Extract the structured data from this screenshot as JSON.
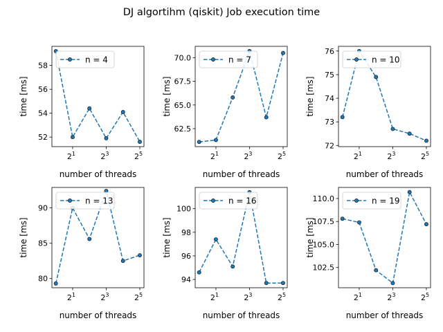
{
  "figure": {
    "title": "DJ algortihm (qiskit) Job execution time"
  },
  "series_color": "#1f77b4",
  "chart_data": [
    {
      "type": "line",
      "xscale": "log2",
      "xlabel": "number of threads",
      "ylabel": "time [ms]",
      "legend": "n = 4",
      "legend_loc": "upper-left",
      "x": [
        1,
        2,
        4,
        8,
        16,
        32
      ],
      "y": [
        59.2,
        52.0,
        54.4,
        51.9,
        54.1,
        51.6
      ],
      "ylim": [
        51.2,
        59.6
      ],
      "xticks": [
        {
          "v": 2,
          "label": "2",
          "exp": "1"
        },
        {
          "v": 8,
          "label": "2",
          "exp": "3"
        },
        {
          "v": 32,
          "label": "2",
          "exp": "5"
        }
      ],
      "yticks": [
        52,
        54,
        56,
        58
      ],
      "ytick_labels": [
        "52",
        "54",
        "56",
        "58"
      ]
    },
    {
      "type": "line",
      "xscale": "log2",
      "xlabel": "number of threads",
      "ylabel": "time [ms]",
      "legend": "n = 7",
      "legend_loc": "upper-left",
      "x": [
        1,
        2,
        4,
        8,
        16,
        32
      ],
      "y": [
        61.1,
        61.3,
        65.8,
        70.7,
        63.7,
        70.5
      ],
      "ylim": [
        60.6,
        71.2
      ],
      "xticks": [
        {
          "v": 2,
          "label": "2",
          "exp": "1"
        },
        {
          "v": 8,
          "label": "2",
          "exp": "3"
        },
        {
          "v": 32,
          "label": "2",
          "exp": "5"
        }
      ],
      "yticks": [
        62.5,
        65.0,
        67.5,
        70.0
      ],
      "ytick_labels": [
        "62.5",
        "65.0",
        "67.5",
        "70.0"
      ]
    },
    {
      "type": "line",
      "xscale": "log2",
      "xlabel": "number of threads",
      "ylabel": "time [ms]",
      "legend": "n = 10",
      "legend_loc": "upper-left",
      "x": [
        1,
        2,
        4,
        8,
        16,
        32
      ],
      "y": [
        73.2,
        76.0,
        74.9,
        72.7,
        72.5,
        72.2
      ],
      "ylim": [
        71.95,
        76.2
      ],
      "xticks": [
        {
          "v": 2,
          "label": "2",
          "exp": "1"
        },
        {
          "v": 8,
          "label": "2",
          "exp": "3"
        },
        {
          "v": 32,
          "label": "2",
          "exp": "5"
        }
      ],
      "yticks": [
        72,
        73,
        74,
        75,
        76
      ],
      "ytick_labels": [
        "72",
        "73",
        "74",
        "75",
        "76"
      ]
    },
    {
      "type": "line",
      "xscale": "log2",
      "xlabel": "number of threads",
      "ylabel": "time [ms]",
      "legend": "n = 13",
      "legend_loc": "upper-left",
      "x": [
        1,
        2,
        4,
        8,
        16,
        32
      ],
      "y": [
        79.3,
        90.0,
        85.6,
        92.4,
        82.5,
        83.3
      ],
      "ylim": [
        78.7,
        92.9
      ],
      "xticks": [
        {
          "v": 2,
          "label": "2",
          "exp": "1"
        },
        {
          "v": 8,
          "label": "2",
          "exp": "3"
        },
        {
          "v": 32,
          "label": "2",
          "exp": "5"
        }
      ],
      "yticks": [
        80,
        85,
        90
      ],
      "ytick_labels": [
        "80",
        "85",
        "90"
      ]
    },
    {
      "type": "line",
      "xscale": "log2",
      "xlabel": "number of threads",
      "ylabel": "time [ms]",
      "legend": "n = 16",
      "legend_loc": "upper-left",
      "x": [
        1,
        2,
        4,
        8,
        16,
        32
      ],
      "y": [
        94.6,
        97.4,
        95.1,
        101.4,
        93.7,
        93.7
      ],
      "ylim": [
        93.3,
        101.8
      ],
      "xticks": [
        {
          "v": 2,
          "label": "2",
          "exp": "1"
        },
        {
          "v": 8,
          "label": "2",
          "exp": "3"
        },
        {
          "v": 32,
          "label": "2",
          "exp": "5"
        }
      ],
      "yticks": [
        94,
        96,
        98,
        100
      ],
      "ytick_labels": [
        "94",
        "96",
        "98",
        "100"
      ]
    },
    {
      "type": "line",
      "xscale": "log2",
      "xlabel": "number of threads",
      "ylabel": "time [ms]",
      "legend": "n = 19",
      "legend_loc": "upper-left",
      "x": [
        1,
        2,
        4,
        8,
        16,
        32
      ],
      "y": [
        107.8,
        107.4,
        102.2,
        100.8,
        110.7,
        107.2
      ],
      "ylim": [
        100.3,
        111.2
      ],
      "xticks": [
        {
          "v": 2,
          "label": "2",
          "exp": "1"
        },
        {
          "v": 8,
          "label": "2",
          "exp": "3"
        },
        {
          "v": 32,
          "label": "2",
          "exp": "5"
        }
      ],
      "yticks": [
        102.5,
        105.0,
        107.5,
        110.0
      ],
      "ytick_labels": [
        "102.5",
        "105.0",
        "107.5",
        "110.0"
      ]
    }
  ]
}
